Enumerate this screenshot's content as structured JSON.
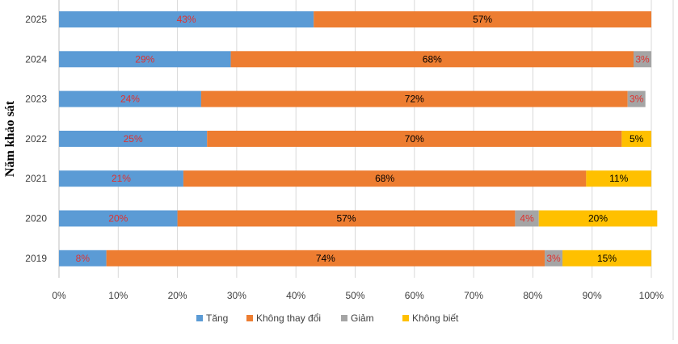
{
  "chart_data": {
    "type": "bar",
    "orientation": "horizontal",
    "stacked": true,
    "percent": true,
    "ylabel": "Năm khảo sát",
    "xlim": [
      0,
      100
    ],
    "xticks": [
      "0%",
      "10%",
      "20%",
      "30%",
      "40%",
      "50%",
      "60%",
      "70%",
      "80%",
      "90%",
      "100%"
    ],
    "grid": "vertical",
    "legend_position": "bottom",
    "categories": [
      "2025",
      "2024",
      "2023",
      "2022",
      "2021",
      "2020",
      "2019"
    ],
    "series": [
      {
        "name": "Tăng",
        "color": "#5B9BD5",
        "label_color": "#E0312F",
        "values": [
          43,
          29,
          24,
          25,
          21,
          20,
          8
        ]
      },
      {
        "name": "Không thay đổi",
        "color": "#ED7D31",
        "label_color": "#000000",
        "values": [
          57,
          68,
          72,
          70,
          68,
          57,
          74
        ]
      },
      {
        "name": "Giảm",
        "color": "#A5A5A5",
        "label_color": "#E0312F",
        "values": [
          0,
          3,
          3,
          0,
          0,
          4,
          3
        ]
      },
      {
        "name": "Không biết",
        "color": "#FFC000",
        "label_color": "#000000",
        "values": [
          0,
          0,
          0,
          5,
          11,
          20,
          15
        ]
      }
    ]
  }
}
